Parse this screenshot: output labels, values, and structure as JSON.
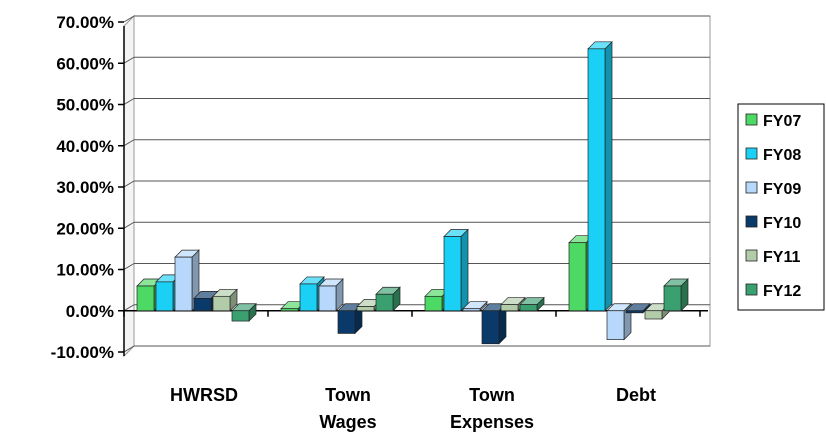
{
  "chart_data": {
    "type": "bar",
    "title": "",
    "xlabel": "",
    "ylabel": "",
    "categories": [
      [
        "HWRSD"
      ],
      [
        "Town",
        "Wages"
      ],
      [
        "Town",
        "Expenses"
      ],
      [
        "Debt"
      ]
    ],
    "series": [
      {
        "name": "FY07",
        "color": "#4cd964",
        "values": [
          6.0,
          0.5,
          3.5,
          16.5
        ]
      },
      {
        "name": "FY08",
        "color": "#1ad1f5",
        "values": [
          7.0,
          6.5,
          18.0,
          63.5
        ]
      },
      {
        "name": "FY09",
        "color": "#b7d8fb",
        "values": [
          13.0,
          6.0,
          0.5,
          -7.0
        ]
      },
      {
        "name": "FY10",
        "color": "#0a3a6a",
        "values": [
          3.0,
          -5.5,
          -8.0,
          -0.5
        ]
      },
      {
        "name": "FY11",
        "color": "#b2ccaa",
        "values": [
          3.5,
          1.0,
          1.5,
          -2.0
        ]
      },
      {
        "name": "FY12",
        "color": "#3aa070",
        "values": [
          -2.5,
          4.0,
          1.5,
          6.0
        ]
      }
    ],
    "ylim": [
      -10,
      70
    ],
    "yticks": [
      "70.00%",
      "60.00%",
      "50.00%",
      "40.00%",
      "30.00%",
      "20.00%",
      "10.00%",
      "0.00%",
      "-10.00%"
    ],
    "ytick_values": [
      70,
      60,
      50,
      40,
      30,
      20,
      10,
      0,
      -10
    ],
    "grid": true,
    "legend": "right"
  }
}
